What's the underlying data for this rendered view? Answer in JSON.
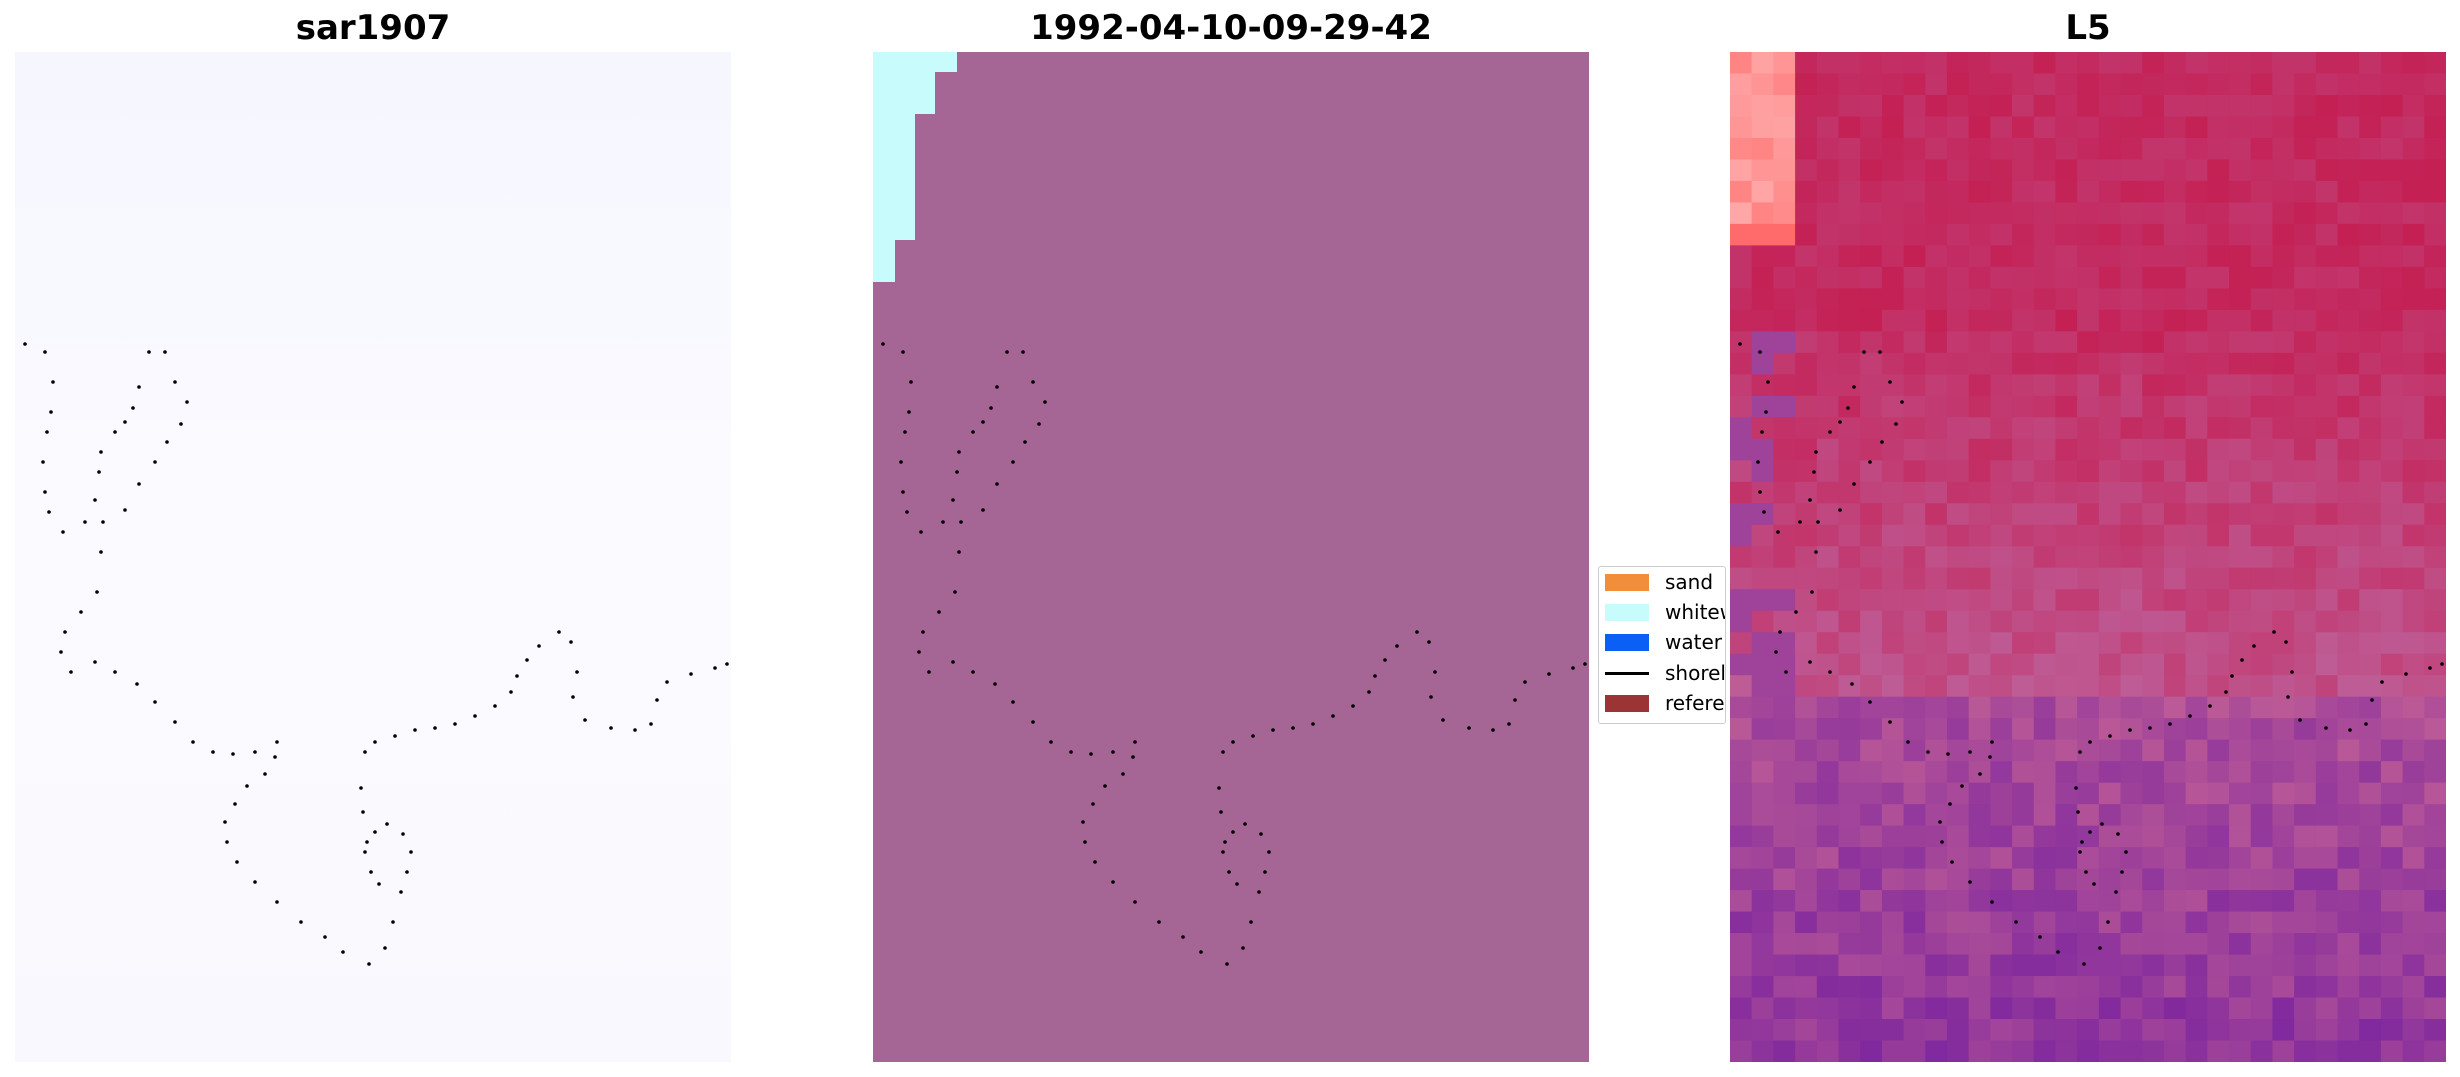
{
  "panels": [
    {
      "title": "sar1907",
      "colormap": "near-white (Purples)"
    },
    {
      "title": "1992-04-10-09-29-42",
      "colormap": "classification"
    },
    {
      "title": "L5",
      "colormap": "RdPu-like false colour"
    }
  ],
  "legend": {
    "placement": "center, between second and third panel",
    "items": [
      {
        "label": "sand",
        "color": "#f28e3a",
        "kind": "patch"
      },
      {
        "label": "whitew",
        "color": "#c8fbfb",
        "kind": "patch"
      },
      {
        "label": "water",
        "color": "#0a5ff5",
        "kind": "patch"
      },
      {
        "label": "shorel",
        "color": "#000000",
        "kind": "line"
      },
      {
        "label": "referen",
        "color": "#9b3535",
        "kind": "patch"
      }
    ]
  },
  "chart_data": {
    "type": "heatmap",
    "shared_overlay": "reference shoreline drawn as black dots on all three panels",
    "classification_colors": {
      "background": "#a56696",
      "whitewater_corner": "#c8fbfb"
    },
    "l5_colors": {
      "dominant": "#c42a5c",
      "low_values": "#8a2aa0",
      "high_values": "#ffb3b3"
    }
  }
}
